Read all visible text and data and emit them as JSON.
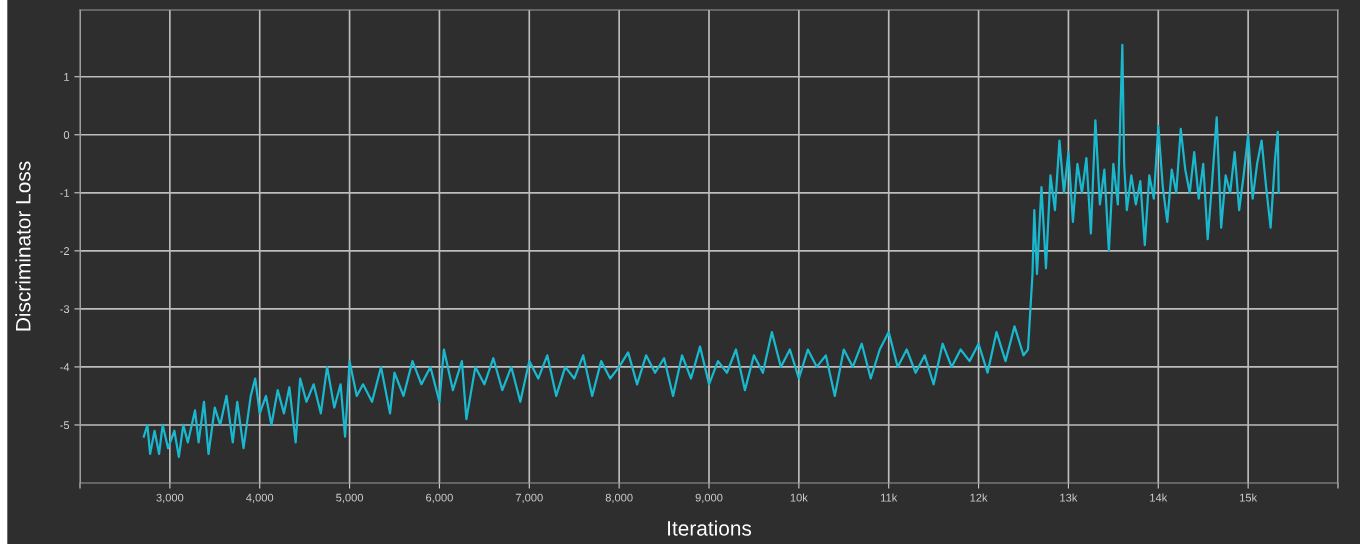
{
  "chart_data": {
    "type": "line",
    "xlabel": "Iterations",
    "ylabel": "Discriminator Loss",
    "xlim": [
      2000,
      16000
    ],
    "xticks": [
      {
        "value": 2000,
        "label": null
      },
      {
        "value": 3000,
        "label": "3,000"
      },
      {
        "value": 4000,
        "label": "4,000"
      },
      {
        "value": 5000,
        "label": "5,000"
      },
      {
        "value": 6000,
        "label": "6,000"
      },
      {
        "value": 7000,
        "label": "7,000"
      },
      {
        "value": 8000,
        "label": "8,000"
      },
      {
        "value": 9000,
        "label": "9,000"
      },
      {
        "value": 10000,
        "label": "10k"
      },
      {
        "value": 11000,
        "label": "11k"
      },
      {
        "value": 12000,
        "label": "12k"
      },
      {
        "value": 13000,
        "label": "13k"
      },
      {
        "value": 14000,
        "label": "14k"
      },
      {
        "value": 15000,
        "label": "15k"
      },
      {
        "value": 16000,
        "label": null
      }
    ],
    "ylim": [
      -6,
      2.15
    ],
    "yticks": [
      -5,
      -4,
      -3,
      -2,
      -1,
      0,
      1
    ],
    "grid": true,
    "marker": "none",
    "line_style": "solid",
    "x": [
      2710,
      2750,
      2780,
      2830,
      2880,
      2920,
      2980,
      3050,
      3100,
      3150,
      3200,
      3280,
      3320,
      3380,
      3430,
      3500,
      3560,
      3630,
      3700,
      3750,
      3820,
      3900,
      3950,
      4000,
      4070,
      4130,
      4200,
      4270,
      4330,
      4400,
      4450,
      4520,
      4600,
      4680,
      4750,
      4830,
      4900,
      4950,
      5000,
      5080,
      5150,
      5250,
      5350,
      5450,
      5500,
      5600,
      5700,
      5800,
      5900,
      6000,
      6050,
      6150,
      6250,
      6300,
      6400,
      6500,
      6600,
      6700,
      6800,
      6900,
      7000,
      7100,
      7200,
      7300,
      7400,
      7500,
      7600,
      7700,
      7800,
      7900,
      8000,
      8100,
      8200,
      8300,
      8400,
      8500,
      8600,
      8700,
      8800,
      8900,
      9000,
      9100,
      9200,
      9300,
      9400,
      9500,
      9600,
      9700,
      9800,
      9900,
      10000,
      10100,
      10200,
      10300,
      10400,
      10500,
      10600,
      10700,
      10800,
      10900,
      11000,
      11100,
      11200,
      11300,
      11400,
      11500,
      11600,
      11700,
      11800,
      11900,
      12000,
      12100,
      12200,
      12300,
      12400,
      12500,
      12550,
      12600,
      12620,
      12650,
      12700,
      12750,
      12800,
      12850,
      12900,
      12950,
      13000,
      13050,
      13100,
      13150,
      13200,
      13250,
      13300,
      13350,
      13400,
      13450,
      13500,
      13550,
      13600,
      13620,
      13650,
      13700,
      13750,
      13800,
      13850,
      13900,
      13950,
      14000,
      14050,
      14100,
      14150,
      14200,
      14250,
      14300,
      14350,
      14400,
      14450,
      14500,
      14550,
      14600,
      14650,
      14700,
      14750,
      14800,
      14850,
      14900,
      14950,
      15000,
      15050,
      15100,
      15150,
      15200,
      15250,
      15300,
      15330,
      15340
    ],
    "series": [
      {
        "color": "#1ab8cf",
        "values": [
          -5.2,
          -5.0,
          -5.5,
          -5.1,
          -5.5,
          -5.0,
          -5.4,
          -5.1,
          -5.55,
          -5.0,
          -5.3,
          -4.75,
          -5.3,
          -4.6,
          -5.5,
          -4.7,
          -5.0,
          -4.5,
          -5.3,
          -4.6,
          -5.4,
          -4.5,
          -4.2,
          -4.8,
          -4.5,
          -5.0,
          -4.4,
          -4.8,
          -4.35,
          -5.3,
          -4.2,
          -4.6,
          -4.3,
          -4.8,
          -4.0,
          -4.7,
          -4.3,
          -5.2,
          -3.9,
          -4.5,
          -4.3,
          -4.6,
          -4.0,
          -4.8,
          -4.1,
          -4.5,
          -3.9,
          -4.3,
          -4.0,
          -4.6,
          -3.7,
          -4.4,
          -3.9,
          -4.9,
          -4.0,
          -4.3,
          -3.85,
          -4.4,
          -4.0,
          -4.6,
          -3.9,
          -4.2,
          -3.8,
          -4.5,
          -4.0,
          -4.2,
          -3.8,
          -4.5,
          -3.9,
          -4.2,
          -4.0,
          -3.75,
          -4.3,
          -3.8,
          -4.1,
          -3.85,
          -4.5,
          -3.8,
          -4.2,
          -3.65,
          -4.3,
          -3.9,
          -4.1,
          -3.7,
          -4.4,
          -3.8,
          -4.1,
          -3.4,
          -4.0,
          -3.7,
          -4.2,
          -3.7,
          -4.0,
          -3.8,
          -4.5,
          -3.7,
          -4.0,
          -3.6,
          -4.2,
          -3.7,
          -3.4,
          -4.0,
          -3.7,
          -4.1,
          -3.8,
          -4.3,
          -3.6,
          -4.0,
          -3.7,
          -3.9,
          -3.6,
          -4.1,
          -3.4,
          -3.9,
          -3.3,
          -3.8,
          -3.7,
          -2.4,
          -1.3,
          -2.4,
          -0.9,
          -2.3,
          -0.7,
          -1.3,
          -0.1,
          -1.0,
          -0.3,
          -1.5,
          -0.5,
          -1.0,
          -0.4,
          -1.7,
          0.25,
          -1.2,
          -0.6,
          -2.0,
          -0.5,
          -1.2,
          1.55,
          -0.5,
          -1.3,
          -0.7,
          -1.2,
          -0.8,
          -1.9,
          -0.7,
          -1.1,
          0.15,
          -0.9,
          -1.5,
          -0.6,
          -1.0,
          0.1,
          -0.6,
          -1.0,
          -0.3,
          -1.1,
          -0.5,
          -1.8,
          -0.8,
          0.3,
          -1.6,
          -0.7,
          -1.0,
          -0.3,
          -1.3,
          -0.7,
          0.0,
          -1.1,
          -0.5,
          -0.1,
          -0.9,
          -1.6,
          -0.4,
          0.05,
          -1.0
        ]
      }
    ]
  }
}
